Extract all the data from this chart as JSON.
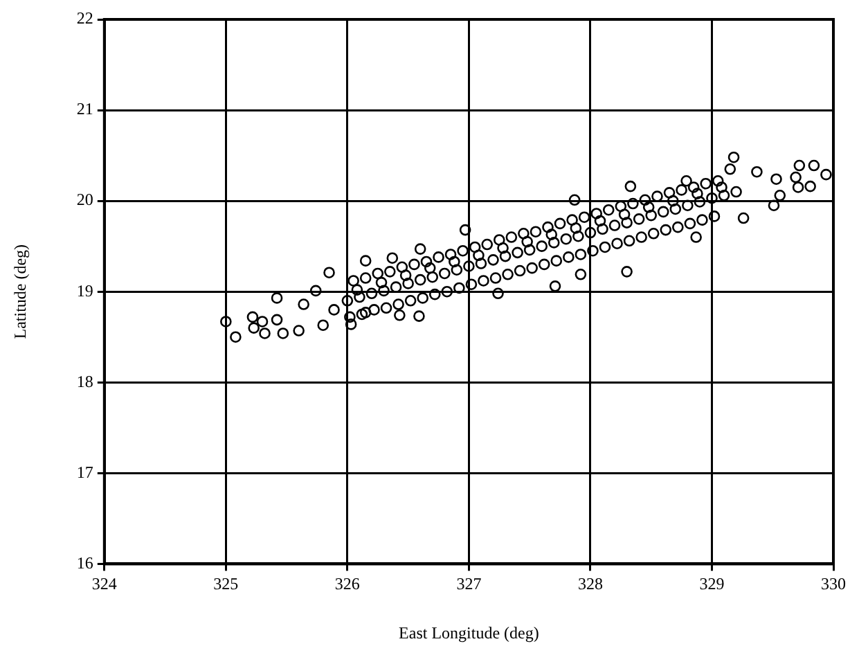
{
  "chart_data": {
    "type": "scatter",
    "xlabel": "East Longitude (deg)",
    "ylabel": "Latitude (deg)",
    "xlim": [
      324,
      330
    ],
    "xticks": [
      324,
      325,
      326,
      327,
      328,
      329,
      330
    ],
    "ylim": [
      16,
      22
    ],
    "yticks": [
      16,
      17,
      18,
      19,
      20,
      21,
      22
    ],
    "grid": true,
    "marker": "circle",
    "legend": false,
    "series": [
      {
        "color": "#000000",
        "x": [
          325.0,
          325.08,
          325.22,
          325.23,
          325.3,
          325.32,
          325.42,
          325.42,
          325.47,
          325.6,
          325.64,
          325.74,
          325.8,
          325.85,
          325.89,
          326.03,
          326.15,
          326.15,
          326.37,
          326.43,
          326.59,
          326.6,
          326.97,
          327.24,
          327.71,
          327.92,
          327.87,
          328.3,
          328.33,
          328.87,
          328.79,
          329.18,
          329.15,
          329.26,
          329.37,
          329.51,
          329.53,
          329.56,
          329.69,
          329.72,
          329.71,
          329.84,
          329.81,
          329.94,
          326.0,
          326.1,
          326.2,
          326.3,
          326.4,
          326.5,
          326.6,
          326.7,
          326.8,
          326.9,
          327.0,
          327.1,
          327.2,
          327.3,
          327.4,
          327.5,
          327.6,
          327.7,
          327.8,
          327.9,
          328.0,
          328.1,
          328.2,
          328.3,
          328.4,
          328.5,
          328.6,
          328.7,
          328.8,
          328.9,
          329.0,
          329.1,
          329.2,
          326.05,
          326.15,
          326.25,
          326.35,
          326.45,
          326.55,
          326.65,
          326.75,
          326.85,
          326.95,
          327.05,
          327.15,
          327.25,
          327.35,
          327.45,
          327.55,
          327.65,
          327.75,
          327.85,
          327.95,
          328.05,
          328.15,
          328.25,
          328.35,
          328.45,
          328.55,
          328.65,
          328.75,
          328.85,
          328.95,
          329.05,
          326.02,
          326.12,
          326.22,
          326.32,
          326.42,
          326.52,
          326.62,
          326.72,
          326.82,
          326.92,
          327.02,
          327.12,
          327.22,
          327.32,
          327.42,
          327.52,
          327.62,
          327.72,
          327.82,
          327.92,
          328.02,
          328.12,
          328.22,
          328.32,
          328.42,
          328.52,
          328.62,
          328.72,
          328.82,
          328.92,
          329.02,
          326.08,
          326.28,
          326.48,
          326.68,
          326.88,
          327.08,
          327.28,
          327.48,
          327.68,
          327.88,
          328.08,
          328.28,
          328.48,
          328.68,
          328.88,
          329.08
        ],
        "values": [
          18.67,
          18.5,
          18.72,
          18.6,
          18.67,
          18.54,
          18.69,
          18.93,
          18.54,
          18.57,
          18.86,
          19.01,
          18.63,
          19.21,
          18.8,
          18.64,
          19.34,
          18.77,
          19.37,
          18.74,
          18.73,
          19.47,
          19.68,
          18.98,
          19.06,
          19.19,
          20.01,
          19.22,
          20.16,
          19.6,
          20.22,
          20.48,
          20.35,
          19.81,
          20.32,
          19.95,
          20.24,
          20.06,
          20.26,
          20.39,
          20.15,
          20.39,
          20.16,
          20.29,
          18.9,
          18.94,
          18.98,
          19.01,
          19.05,
          19.09,
          19.13,
          19.16,
          19.2,
          19.24,
          19.28,
          19.31,
          19.35,
          19.39,
          19.43,
          19.46,
          19.5,
          19.54,
          19.58,
          19.61,
          19.65,
          19.69,
          19.73,
          19.76,
          19.8,
          19.84,
          19.88,
          19.91,
          19.95,
          19.99,
          20.03,
          20.06,
          20.1,
          19.12,
          19.15,
          19.2,
          19.22,
          19.27,
          19.3,
          19.33,
          19.38,
          19.41,
          19.45,
          19.49,
          19.52,
          19.57,
          19.6,
          19.64,
          19.66,
          19.71,
          19.75,
          19.79,
          19.82,
          19.86,
          19.9,
          19.94,
          19.97,
          20.01,
          20.05,
          20.09,
          20.12,
          20.15,
          20.19,
          20.22,
          18.72,
          18.75,
          18.8,
          18.82,
          18.86,
          18.9,
          18.93,
          18.97,
          19.0,
          19.04,
          19.08,
          19.12,
          19.15,
          19.19,
          19.23,
          19.26,
          19.3,
          19.34,
          19.38,
          19.41,
          19.45,
          19.49,
          19.53,
          19.56,
          19.6,
          19.64,
          19.68,
          19.71,
          19.75,
          19.79,
          19.83,
          19.02,
          19.1,
          19.18,
          19.26,
          19.33,
          19.4,
          19.48,
          19.55,
          19.63,
          19.7,
          19.78,
          19.85,
          19.93,
          20.0,
          20.08,
          20.15
        ]
      }
    ]
  }
}
